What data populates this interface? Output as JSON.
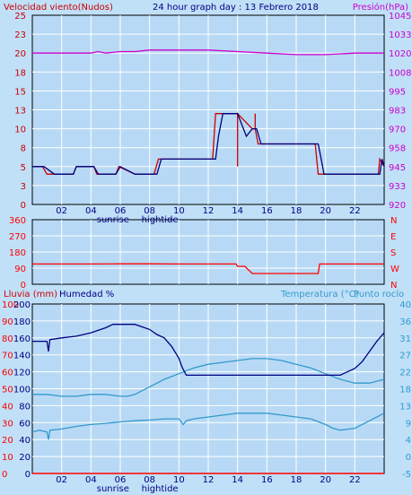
{
  "title": "24 hour graph day : 13 Febrero 2018",
  "colors": {
    "background": "#C0E0F8",
    "plot_bg": "#B7D9F5",
    "grid": "#FFFFFF",
    "axis": "#000000",
    "wind": "#CC0000",
    "wind_avg": "#000080",
    "pressure": "#CC00CC",
    "direction": "#FF0000",
    "humidity": "#000080",
    "temperature": "#3399CC",
    "dew": "#3399CC",
    "rain": "#FF0000"
  },
  "chart_data": [
    {
      "type": "line",
      "ylabel_left": "Velocidad viento(Nudos)",
      "ylabel_right": "Presión(hPa)",
      "x_ticks": [
        "02",
        "04",
        "06",
        "08",
        "10",
        "12",
        "14",
        "16",
        "18",
        "20",
        "22"
      ],
      "x_range": [
        0,
        24
      ],
      "y_left_ticks": [
        "0",
        "3",
        "5",
        "8",
        "10",
        "13",
        "15",
        "18",
        "20",
        "23",
        "25"
      ],
      "y_left_range": [
        0,
        25
      ],
      "y_right_ticks": [
        "920",
        "933",
        "945",
        "958",
        "970",
        "983",
        "995",
        "1008",
        "1020",
        "1033",
        "1045"
      ],
      "y_right_range": [
        920,
        1045
      ],
      "series": [
        {
          "role": "wind_avg",
          "x": [
            0,
            0.8,
            1.5,
            2.8,
            3.0,
            4.2,
            4.5,
            5.7,
            6.0,
            7.0,
            8.5,
            8.8,
            12.5,
            12.7,
            13.0,
            13.3,
            14.0,
            14.4,
            14.6,
            15.0,
            15.3,
            15.6,
            19.5,
            19.7,
            19.9,
            23.7,
            23.85,
            24
          ],
          "values": [
            5,
            5,
            4,
            4,
            5,
            5,
            4,
            4,
            5,
            4,
            4,
            6,
            6,
            9,
            12,
            12,
            12,
            10,
            9,
            10,
            10,
            8,
            8,
            6,
            4,
            4,
            6,
            5
          ]
        },
        {
          "role": "wind_gust",
          "x": [
            0,
            0.7,
            1.0,
            2.8,
            3.0,
            4.2,
            4.4,
            5.7,
            5.9,
            7.0,
            8.3,
            8.6,
            12.3,
            12.5,
            14.0,
            14.0,
            14.0,
            15.0,
            15.2,
            15.2,
            15.2,
            15.4,
            19.3,
            19.5,
            23.6,
            23.7,
            24
          ],
          "values": [
            5,
            5,
            4,
            4,
            5,
            5,
            4,
            4,
            5,
            4,
            4,
            6,
            6,
            12,
            12,
            5,
            12,
            10,
            10,
            12,
            10,
            8,
            8,
            4,
            4,
            6,
            5
          ]
        },
        {
          "role": "pressure",
          "x": [
            0,
            2,
            4,
            4.5,
            5,
            6,
            7,
            8,
            9,
            10,
            12,
            14,
            16,
            18,
            20,
            22,
            23,
            24
          ],
          "values": [
            1020,
            1020,
            1020,
            1021,
            1020,
            1021,
            1021,
            1022,
            1022,
            1022,
            1022,
            1021,
            1020,
            1019,
            1019,
            1020,
            1020,
            1020
          ]
        }
      ]
    },
    {
      "type": "line",
      "y_right_ticks": [
        "N",
        "W",
        "S",
        "E",
        "N"
      ],
      "y_left_ticks": [
        "0",
        "90",
        "180",
        "270",
        "360"
      ],
      "y_range": [
        0,
        360
      ],
      "series": [
        {
          "role": "direction",
          "x": [
            0,
            4,
            6,
            8,
            10,
            12,
            13.9,
            14.0,
            14.5,
            15.0,
            19.5,
            19.6,
            24
          ],
          "values": [
            113,
            113,
            114,
            114,
            113,
            113,
            113,
            100,
            100,
            60,
            60,
            113,
            113
          ]
        }
      ]
    },
    {
      "type": "line",
      "ylabel_left_1": "Lluvia (mm)",
      "ylabel_left_2": "Humedad %",
      "ylabel_right_1": "Temperatura (°C)",
      "ylabel_right_2": "Punto rocío",
      "y_left_ticks": [
        "0",
        "10",
        "20",
        "30",
        "40",
        "50",
        "60",
        "70",
        "80",
        "90",
        "100"
      ],
      "y_left2_ticks": [
        "0",
        "20",
        "40",
        "60",
        "80",
        "100",
        "120",
        "140",
        "160",
        "180",
        "200"
      ],
      "y_right_ticks": [
        "-5",
        "0",
        "4",
        "9",
        "13",
        "18",
        "22",
        "27",
        "31",
        "36",
        "40"
      ],
      "y_left_range": [
        0,
        100
      ],
      "y_right_range": [
        -5,
        40
      ],
      "series": [
        {
          "role": "humidity",
          "x": [
            0,
            1,
            1.1,
            1.2,
            2,
            3,
            4,
            5,
            5.5,
            6,
            7,
            8,
            8.5,
            9,
            9.5,
            10,
            10.2,
            10.5,
            11,
            12,
            13,
            14,
            15,
            16,
            17,
            18,
            19,
            20,
            21,
            22,
            22.5,
            23,
            23.5,
            24
          ],
          "values": [
            78,
            78,
            72,
            79,
            80,
            81,
            83,
            86,
            88,
            88,
            88,
            85,
            82,
            80,
            75,
            68,
            63,
            58,
            58,
            58,
            58,
            58,
            58,
            58,
            58,
            58,
            58,
            58,
            58,
            62,
            66,
            72,
            78,
            83
          ]
        },
        {
          "role": "temperature",
          "x": [
            0,
            1,
            2,
            3,
            4,
            5,
            6,
            6.5,
            7,
            8,
            9,
            10,
            11,
            12,
            13,
            14,
            15,
            16,
            17,
            18,
            19,
            20,
            21,
            22,
            23,
            24
          ],
          "values": [
            16,
            16,
            15.5,
            15.5,
            16,
            16,
            15.5,
            15.5,
            16,
            18,
            20,
            21.5,
            23,
            24,
            24.5,
            25,
            25.5,
            25.5,
            25,
            24,
            23,
            21.5,
            20,
            19,
            19,
            20
          ]
        },
        {
          "role": "dew",
          "x": [
            0,
            0.5,
            1,
            1.1,
            1.2,
            2,
            3,
            4,
            5,
            6,
            7,
            8,
            9,
            10,
            10.3,
            10.5,
            11,
            12,
            13,
            14,
            15,
            16,
            17,
            18,
            19,
            20,
            20.5,
            21,
            22,
            23,
            24
          ],
          "values": [
            6,
            6.5,
            6,
            4,
            6.5,
            6.8,
            7.5,
            8,
            8.3,
            8.7,
            9,
            9.2,
            9.5,
            9.5,
            8,
            9,
            9.5,
            10,
            10.5,
            11,
            11,
            11,
            10.5,
            10,
            9.5,
            8,
            7,
            6.5,
            7,
            9,
            11
          ]
        },
        {
          "role": "rain",
          "x": [
            0,
            24
          ],
          "values": [
            0,
            0
          ]
        }
      ]
    }
  ],
  "panels": {
    "p1": {
      "rx0": 36,
      "rx1": 428,
      "ry0": 17,
      "ry1": 228
    },
    "p2": {
      "rx0": 36,
      "rx1": 428,
      "ry0": 245,
      "ry1": 317
    },
    "p3": {
      "rx0": 36,
      "rx1": 428,
      "ry0": 339,
      "ry1": 528
    }
  },
  "x_sub_labels": [
    "sunrise",
    "hightide"
  ],
  "x_sub_labels_xpos": [
    5.5,
    8.7
  ]
}
